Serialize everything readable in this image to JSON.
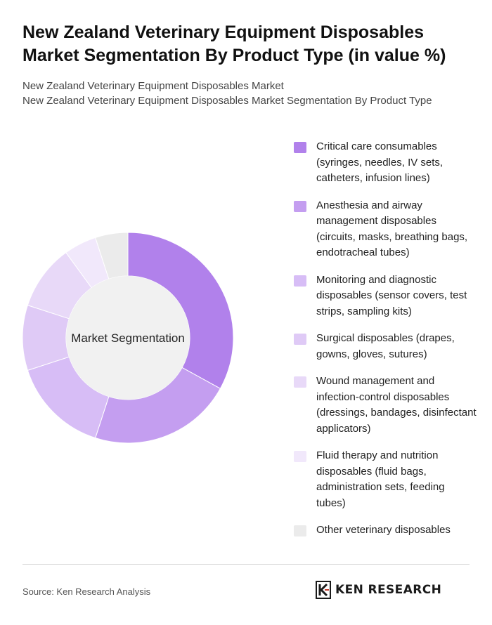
{
  "header": {
    "title_line1": "New Zealand Veterinary Equipment Disposables",
    "title_line2": "Market Segmentation By Product Type (in value %)",
    "subtitle_line1": "New Zealand Veterinary Equipment Disposables Market",
    "subtitle_line2": "New Zealand Veterinary Equipment Disposables Market Segmentation By Product Type"
  },
  "chart_data": {
    "type": "pie",
    "variant": "donut",
    "center_label": "Market Segmentation",
    "legend_position": "right",
    "slices": [
      {
        "label": "Critical care consumables (syringes, needles, IV sets, catheters, infusion lines)",
        "value": 33,
        "color": "#b181eb"
      },
      {
        "label": "Anesthesia and airway management disposables (circuits, masks, breathing bags, endotracheal tubes)",
        "value": 22,
        "color": "#c49ef0"
      },
      {
        "label": "Monitoring and diagnostic disposables (sensor covers, test strips, sampling kits)",
        "value": 15,
        "color": "#d7bdf6"
      },
      {
        "label": "Surgical disposables (drapes, gowns, gloves, sutures)",
        "value": 10,
        "color": "#dfcaf6"
      },
      {
        "label": "Wound management and infection-control disposables (dressings, bandages, disinfectant applicators)",
        "value": 10,
        "color": "#e8d9f8"
      },
      {
        "label": "Fluid therapy and nutrition disposables (fluid bags, administration sets, feeding tubes)",
        "value": 5,
        "color": "#f1e8fb"
      },
      {
        "label": "Other veterinary disposables",
        "value": 5,
        "color": "#ebebeb"
      }
    ],
    "hole_color": "#f1f1f1"
  },
  "footer": {
    "source": "Source: Ken Research Analysis",
    "logo_text": "KEN RESEARCH"
  }
}
